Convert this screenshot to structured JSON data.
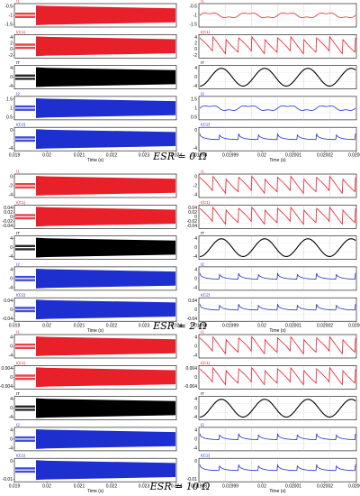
{
  "captions": [
    "ESR = 0 Ω",
    "ESR = 2 Ω",
    "ESR = 10 Ω"
  ],
  "chart_data": [
    {
      "type": "line",
      "group": "ESR = 0 Ω",
      "xlabel": "Time (s)",
      "left_x_ticks": [
        "0.019",
        "0.02",
        "0.021",
        "0.022",
        "0.023",
        "0.024"
      ],
      "right_x_ticks": [
        "0.01998",
        "0.01999",
        "0.02",
        "0.02001",
        "0.02002",
        "0.02003"
      ],
      "panels": [
        {
          "name": "I1",
          "color": "#e8202a",
          "yticks": [
            "-0.5",
            "-1",
            "-1.5"
          ],
          "shape": "ripple",
          "ylim": [
            -1.6,
            -0.4
          ]
        },
        {
          "name": "I(C1)",
          "color": "#e8202a",
          "yticks": [
            "4",
            "2",
            "0",
            "-2"
          ],
          "shape": "saw",
          "ylim": [
            -3,
            5
          ]
        },
        {
          "name": "IT",
          "color": "#000000",
          "yticks": [
            "4",
            "0",
            "-4"
          ],
          "shape": "sine",
          "ylim": [
            -5,
            5
          ]
        },
        {
          "name": "I2",
          "color": "#1e2fd0",
          "yticks": [
            "1.5",
            "1",
            "0.5"
          ],
          "shape": "ripple",
          "ylim": [
            0.4,
            1.6
          ]
        },
        {
          "name": "I(C2)",
          "color": "#1e2fd0",
          "yticks": [
            "0",
            "-4"
          ],
          "shape": "scallop",
          "ylim": [
            -5,
            2
          ]
        }
      ]
    },
    {
      "type": "line",
      "group": "ESR = 2 Ω",
      "xlabel": "Time (s)",
      "left_x_ticks": [
        "0.019",
        "0.02",
        "0.021",
        "0.022",
        "0.023",
        "0.024"
      ],
      "right_x_ticks": [
        "0.01998",
        "0.01999",
        "0.02",
        "0.02001",
        "0.02002",
        "0.02003"
      ],
      "panels": [
        {
          "name": "I1",
          "color": "#e8202a",
          "yticks": [
            "0",
            "-2",
            "-4"
          ],
          "shape": "saw",
          "ylim": [
            -5,
            1
          ]
        },
        {
          "name": "I(C1)",
          "color": "#e8202a",
          "yticks": [
            "0.04",
            "0.02",
            "0",
            "-0.02",
            "-0.04"
          ],
          "shape": "saw",
          "ylim": [
            -0.05,
            0.05
          ]
        },
        {
          "name": "IT",
          "color": "#000000",
          "yticks": [
            "4",
            "0",
            "-4"
          ],
          "shape": "sine",
          "ylim": [
            -5,
            5
          ]
        },
        {
          "name": "I2",
          "color": "#1e2fd0",
          "yticks": [
            "4",
            "0",
            "-4"
          ],
          "shape": "scallop",
          "ylim": [
            -5,
            5
          ]
        },
        {
          "name": "I(C2)",
          "color": "#1e2fd0",
          "yticks": [
            "0.04",
            "0",
            "-0.04"
          ],
          "shape": "scallop",
          "ylim": [
            -0.05,
            0.05
          ]
        }
      ]
    },
    {
      "type": "line",
      "group": "ESR = 10 Ω",
      "xlabel": "Time (s)",
      "left_x_ticks": [
        "0.019",
        "0.02",
        "0.021",
        "0.022",
        "0.023",
        "0.024"
      ],
      "right_x_ticks": [
        "0.01998",
        "0.01999",
        "0.02",
        "0.02001",
        "0.02002",
        "0.02003"
      ],
      "panels": [
        {
          "name": "I1",
          "color": "#e8202a",
          "yticks": [
            "4",
            "0",
            "-4"
          ],
          "shape": "saw",
          "ylim": [
            -5,
            5
          ]
        },
        {
          "name": "I(C1)",
          "color": "#e8202a",
          "yticks": [
            "0.004",
            "0",
            "-0.004"
          ],
          "shape": "saw",
          "ylim": [
            -0.005,
            0.005
          ]
        },
        {
          "name": "IT",
          "color": "#000000",
          "yticks": [
            "4",
            "0",
            "-4"
          ],
          "shape": "sine",
          "ylim": [
            -5,
            5
          ]
        },
        {
          "name": "I2",
          "color": "#1e2fd0",
          "yticks": [
            "4",
            "0",
            "-4"
          ],
          "shape": "scallop",
          "ylim": [
            -5,
            5
          ]
        },
        {
          "name": "I(C2)",
          "color": "#1e2fd0",
          "yticks": [
            "0",
            "-0.01"
          ],
          "shape": "scallop",
          "ylim": [
            -0.012,
            0.002
          ]
        }
      ]
    }
  ]
}
